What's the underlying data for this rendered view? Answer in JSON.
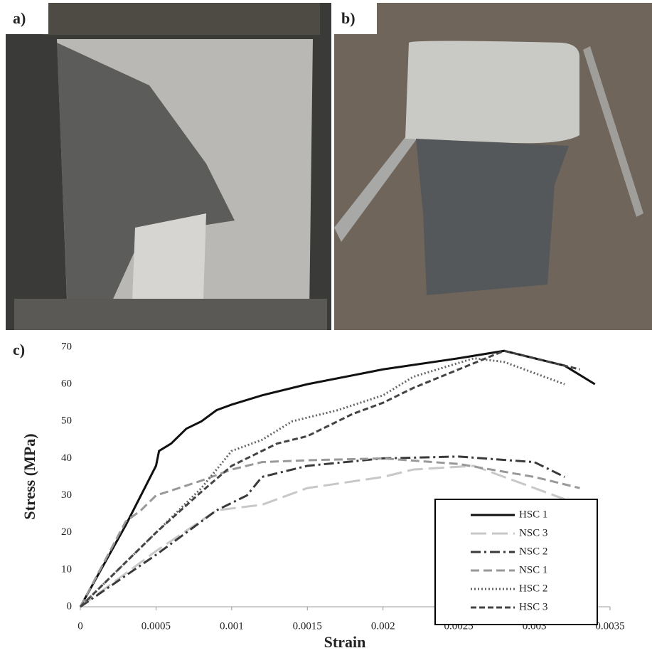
{
  "panels": [
    {
      "label": "a)"
    },
    {
      "label": "b)"
    },
    {
      "label": "c)"
    }
  ],
  "chart_data": {
    "type": "line",
    "x_label": "Strain",
    "y_label": "Stress (MPa)",
    "xlim": [
      0,
      0.0035
    ],
    "xticks": [
      0,
      0.0005,
      0.001,
      0.0015,
      0.002,
      0.0025,
      0.003,
      0.0035
    ],
    "ylim": [
      0,
      70
    ],
    "yticks": [
      0,
      10,
      20,
      30,
      40,
      50,
      60,
      70
    ],
    "grid": false,
    "legend": "lower right",
    "series": [
      {
        "name": "HSC 1",
        "color": "#111111",
        "dash": "none",
        "width": 3,
        "x": [
          0,
          0.0003,
          0.0005,
          0.00052,
          0.0006,
          0.0007,
          0.0008,
          0.0009,
          0.001,
          0.0012,
          0.0015,
          0.002,
          0.0025,
          0.0028,
          0.003,
          0.0032,
          0.0034
        ],
        "values": [
          0,
          22,
          38,
          42,
          44,
          48,
          50,
          53,
          54.5,
          57,
          60,
          64,
          67,
          69,
          67,
          65,
          60
        ]
      },
      {
        "name": "NSC 3",
        "color": "#c8c8c8",
        "dash": "22 8",
        "width": 3,
        "x": [
          0,
          0.0005,
          0.0009,
          0.0012,
          0.0015,
          0.002,
          0.0022,
          0.0026,
          0.003,
          0.0032
        ],
        "values": [
          0,
          15,
          26,
          27.5,
          32,
          35,
          37,
          38,
          32,
          29
        ]
      },
      {
        "name": "NSC 2",
        "color": "#3a3a3a",
        "dash": "14 5 3 5",
        "width": 3,
        "x": [
          0,
          0.0005,
          0.0009,
          0.0011,
          0.0012,
          0.0015,
          0.002,
          0.0025,
          0.003,
          0.0032
        ],
        "values": [
          0,
          14,
          26,
          30,
          35,
          38,
          40,
          40.5,
          39,
          35
        ]
      },
      {
        "name": "NSC 1",
        "color": "#999999",
        "dash": "12 6",
        "width": 3,
        "x": [
          0,
          0.0003,
          0.0004,
          0.0005,
          0.0008,
          0.001,
          0.0012,
          0.0015,
          0.002,
          0.0025,
          0.003,
          0.0033
        ],
        "values": [
          0,
          23,
          26,
          30,
          34,
          37,
          39,
          39.5,
          40,
          38.5,
          35,
          32
        ]
      },
      {
        "name": "HSC 2",
        "color": "#666666",
        "dash": "2 3",
        "width": 3,
        "x": [
          0,
          0.0005,
          0.0008,
          0.001,
          0.0012,
          0.0014,
          0.0017,
          0.002,
          0.0022,
          0.0026,
          0.0028,
          0.0032
        ],
        "values": [
          0,
          20,
          32,
          42,
          45,
          50,
          53,
          57,
          62,
          67,
          66,
          60
        ]
      },
      {
        "name": "HSC 3",
        "color": "#444444",
        "dash": "8 4",
        "width": 3,
        "x": [
          0,
          0.0005,
          0.0008,
          0.001,
          0.0013,
          0.0015,
          0.0018,
          0.002,
          0.0022,
          0.0025,
          0.0028,
          0.003,
          0.0033
        ],
        "values": [
          0,
          20,
          31,
          38,
          44,
          46,
          52,
          55,
          59,
          64,
          69,
          67,
          64
        ]
      }
    ]
  }
}
